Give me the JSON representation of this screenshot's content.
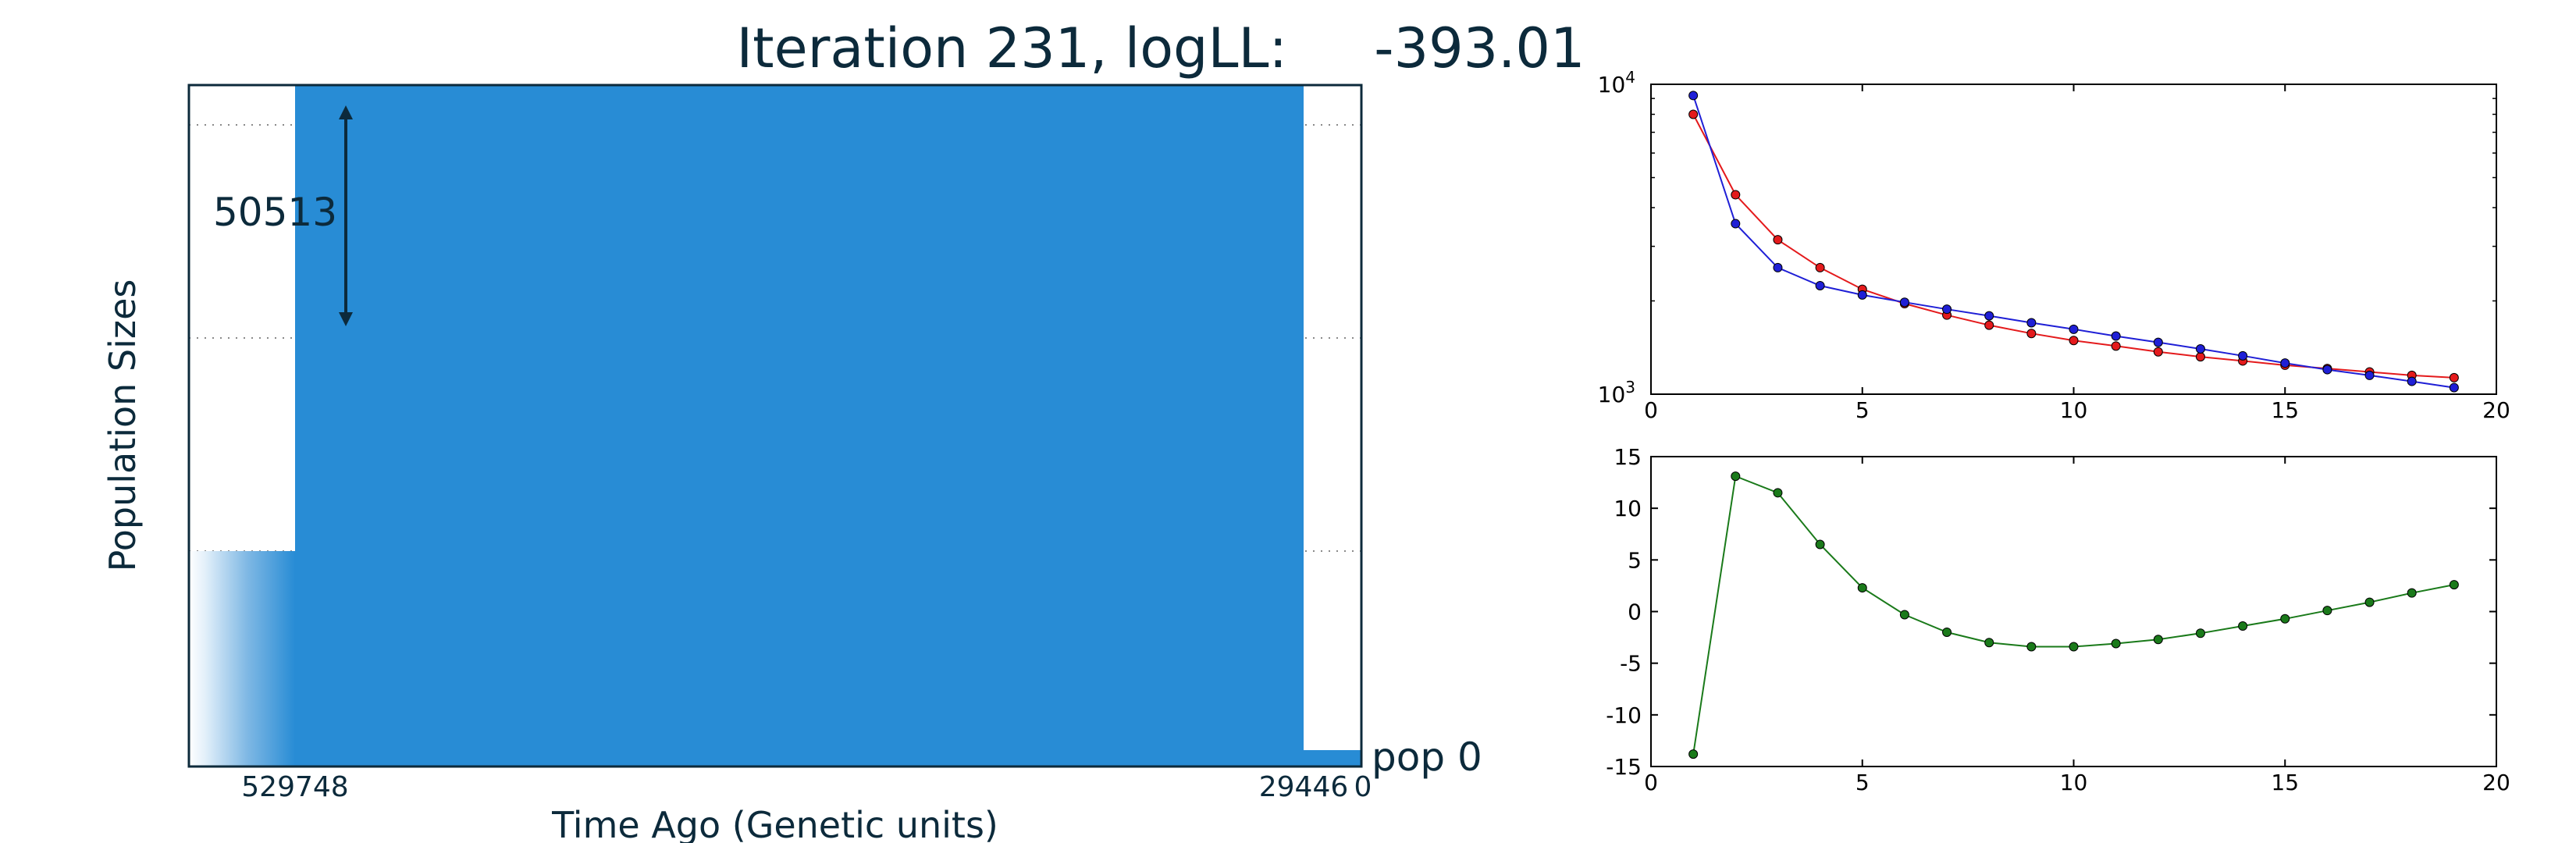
{
  "colors": {
    "ink": "#0c2a3b",
    "area": "#288cd5",
    "red_series": "#e41a1c",
    "blue_series": "#1f1fd6",
    "green_series": "#1a7a1a"
  },
  "chart_data": [
    {
      "type": "area",
      "title": "Iteration 231, logLL:     -393.01",
      "xlabel": "Time Ago (Genetic units)",
      "ylabel": "Population Sizes",
      "x_tick_labels": [
        "529748",
        "29446",
        "0"
      ],
      "annotation_value": "50513",
      "population_label": "pop 0",
      "grid": "dotted horizontal lines"
    },
    {
      "type": "line",
      "yscale": "log",
      "xlim": [
        0,
        20
      ],
      "ylim": [
        1000,
        10000
      ],
      "x_ticks": [
        0,
        5,
        10,
        15,
        20
      ],
      "y_tick_labels": [
        {
          "base": "10",
          "exp": "4",
          "value": 10000
        },
        {
          "base": "10",
          "exp": "3",
          "value": 1000
        }
      ],
      "series": [
        {
          "color": "red",
          "x": [
            1,
            2,
            3,
            4,
            5,
            6,
            7,
            8,
            9,
            10,
            11,
            12,
            13,
            14,
            15,
            16,
            17,
            18,
            19
          ],
          "values": [
            8000,
            4400,
            3150,
            2560,
            2180,
            1960,
            1800,
            1670,
            1570,
            1490,
            1430,
            1370,
            1320,
            1280,
            1240,
            1210,
            1180,
            1150,
            1130
          ]
        },
        {
          "color": "blue",
          "x": [
            1,
            2,
            3,
            4,
            5,
            6,
            7,
            8,
            9,
            10,
            11,
            12,
            13,
            14,
            15,
            16,
            17,
            18,
            19
          ],
          "values": [
            9200,
            3550,
            2560,
            2240,
            2090,
            1980,
            1880,
            1790,
            1700,
            1620,
            1540,
            1470,
            1400,
            1330,
            1260,
            1200,
            1150,
            1100,
            1050
          ]
        }
      ]
    },
    {
      "type": "line",
      "xlim": [
        0,
        20
      ],
      "ylim": [
        -15,
        15
      ],
      "x_ticks": [
        0,
        5,
        10,
        15,
        20
      ],
      "y_ticks": [
        15,
        10,
        5,
        0,
        -5,
        -10,
        -15
      ],
      "series": [
        {
          "color": "green",
          "x": [
            1,
            2,
            3,
            4,
            5,
            6,
            7,
            8,
            9,
            10,
            11,
            12,
            13,
            14,
            15,
            16,
            17,
            18,
            19
          ],
          "values": [
            -13.8,
            13.1,
            11.5,
            6.5,
            2.3,
            -0.3,
            -2.0,
            -3.0,
            -3.4,
            -3.4,
            -3.1,
            -2.7,
            -2.1,
            -1.4,
            -0.7,
            0.1,
            0.9,
            1.8,
            2.6
          ]
        }
      ]
    }
  ]
}
